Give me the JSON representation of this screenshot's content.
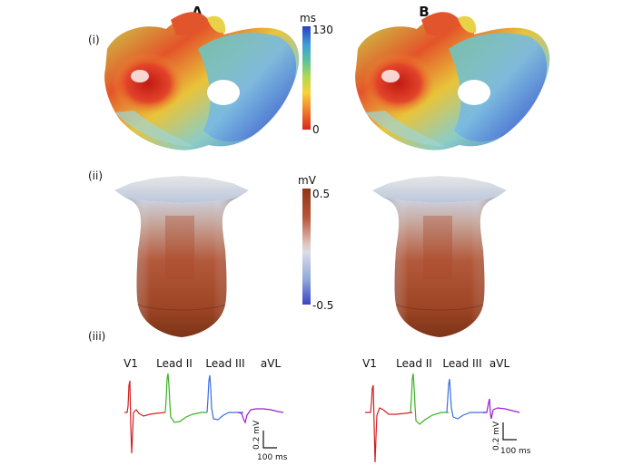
{
  "columns": {
    "a": "A",
    "b": "B"
  },
  "rows": {
    "i": "(i)",
    "ii": "(ii)",
    "iii": "(iii)"
  },
  "activation_colorbar": {
    "unit": "ms",
    "max_label": "130",
    "min_label": "0",
    "colors": [
      "#d7261e",
      "#f07d2a",
      "#f7d23b",
      "#b5d94a",
      "#5cc59a",
      "#3f9fd6",
      "#2b3fc0"
    ]
  },
  "potential_colorbar": {
    "unit": "mV",
    "max_label": "0.5",
    "min_label": "-0.5",
    "colors": [
      "#8f3416",
      "#b8543a",
      "#e0c7c0",
      "#d9dde8",
      "#93a9d8",
      "#3a45c4"
    ]
  },
  "ecg": {
    "a": {
      "leads": [
        {
          "label": "V1",
          "color": "#d42020"
        },
        {
          "label": "Lead II",
          "color": "#39b320"
        },
        {
          "label": "Lead III",
          "color": "#3a6fe0"
        },
        {
          "label": "aVL",
          "color": "#9a1ed1"
        }
      ],
      "scale_voltage": "0.2 mV",
      "scale_time": "100 ms"
    },
    "b": {
      "leads": [
        {
          "label": "V1",
          "color": "#d42020"
        },
        {
          "label": "Lead II",
          "color": "#39b320"
        },
        {
          "label": "Lead III",
          "color": "#3a6fe0"
        },
        {
          "label": "aVL",
          "color": "#9a1ed1"
        }
      ],
      "scale_voltage": "0.2 mV",
      "scale_time": "100 ms"
    }
  }
}
